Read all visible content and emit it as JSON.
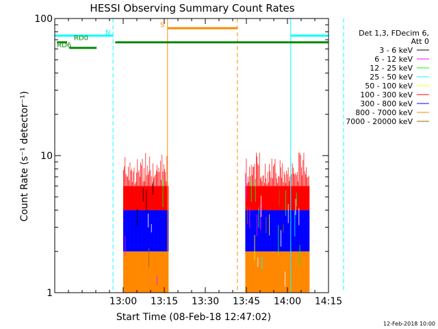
{
  "chart_data": {
    "type": "line",
    "title": "HESSI Observing Summary Count Rates",
    "xlabel": "Start Time (08-Feb-18 12:47:02)",
    "ylabel": "Count Rate (s⁻¹ detector⁻¹)",
    "yscale": "log",
    "ylim": [
      1,
      100
    ],
    "xlim_minutes": [
      35,
      135
    ],
    "x_ticks": [
      {
        "label": "13:00",
        "minutes": 60
      },
      {
        "label": "13:15",
        "minutes": 75
      },
      {
        "label": "13:30",
        "minutes": 90
      },
      {
        "label": "13:45",
        "minutes": 105
      },
      {
        "label": "14:00",
        "minutes": 120
      },
      {
        "label": "14:15",
        "minutes": 135
      }
    ],
    "y_ticks": [
      {
        "label": "1",
        "value": 1
      },
      {
        "label": "10",
        "value": 10
      },
      {
        "label": "100",
        "value": 100
      }
    ],
    "legend": {
      "header": [
        "Det 1,3, FDecim 6,",
        "Att 0"
      ],
      "entries": [
        {
          "label": "3 - 6 keV",
          "color": "#000000"
        },
        {
          "label": "6 - 12 keV",
          "color": "#ff00ff"
        },
        {
          "label": "12 - 25 keV",
          "color": "#00ff00"
        },
        {
          "label": "25 - 50 keV",
          "color": "#00ffff"
        },
        {
          "label": "50 - 100 keV",
          "color": "#ffff00"
        },
        {
          "label": "100 - 300 keV",
          "color": "#ff0000"
        },
        {
          "label": "300 - 800 keV",
          "color": "#0000ff"
        },
        {
          "label": "800 - 7000 keV",
          "color": "#ff8800"
        },
        {
          "label": "7000 - 20000 keV",
          "color": "#996600"
        }
      ]
    },
    "annotations": [
      {
        "label": "N",
        "color": "#00ffff"
      },
      {
        "label": "S",
        "color": "#ff8800"
      },
      {
        "label": "RD0",
        "color": "#008800"
      },
      {
        "label": "RD6",
        "color": "#008800"
      }
    ],
    "intervals": [
      {
        "label": "N",
        "color": "#00ffff",
        "y": 75,
        "ranges": [
          [
            35,
            56.3
          ],
          [
            121.2,
            140.5
          ]
        ]
      },
      {
        "label": "S",
        "color": "#ff8800",
        "y": 85,
        "ranges": [
          [
            76.2,
            101.7
          ]
        ]
      },
      {
        "label": "RD0",
        "color": "#008800",
        "y": 67,
        "ranges": [
          [
            57.1,
            140.5
          ]
        ]
      },
      {
        "label": "RD6",
        "color": "#008800",
        "y": 61,
        "ranges": [
          [
            40.3,
            50.3
          ]
        ]
      },
      {
        "label": "RD0 lead",
        "color": "#008800",
        "y": 67,
        "ranges": [
          [
            35.8,
            39.5
          ]
        ]
      }
    ],
    "vertical_markers": [
      {
        "minutes": 35,
        "color": "#00ffff",
        "style": "solid"
      },
      {
        "minutes": 56.3,
        "color": "#00ffff",
        "style": "dashed"
      },
      {
        "minutes": 76.2,
        "color": "#ff8800",
        "style": "solid"
      },
      {
        "minutes": 101.7,
        "color": "#ff8800",
        "style": "dashed"
      },
      {
        "minutes": 121.2,
        "color": "#00ffff",
        "style": "solid"
      },
      {
        "minutes": 140.5,
        "color": "#00ffff",
        "style": "dashed"
      }
    ],
    "data_segments": [
      {
        "start": 60,
        "end": 76.2
      },
      {
        "start": 104.6,
        "end": 127.9
      }
    ],
    "bands": [
      {
        "label": "800 - 7000 keV",
        "color": "#ff8800",
        "lo": 1.0,
        "hi": 2.0
      },
      {
        "label": "300 - 800 keV",
        "color": "#0000ff",
        "lo": 2.0,
        "hi": 4.0
      },
      {
        "label": "100 - 300 keV",
        "color": "#ff0000",
        "lo": 4.0,
        "hi": 6.0
      }
    ],
    "spike_ceiling": 10.5
  },
  "footer": {
    "date_stamp": "12-Feb-2018 10:00"
  }
}
